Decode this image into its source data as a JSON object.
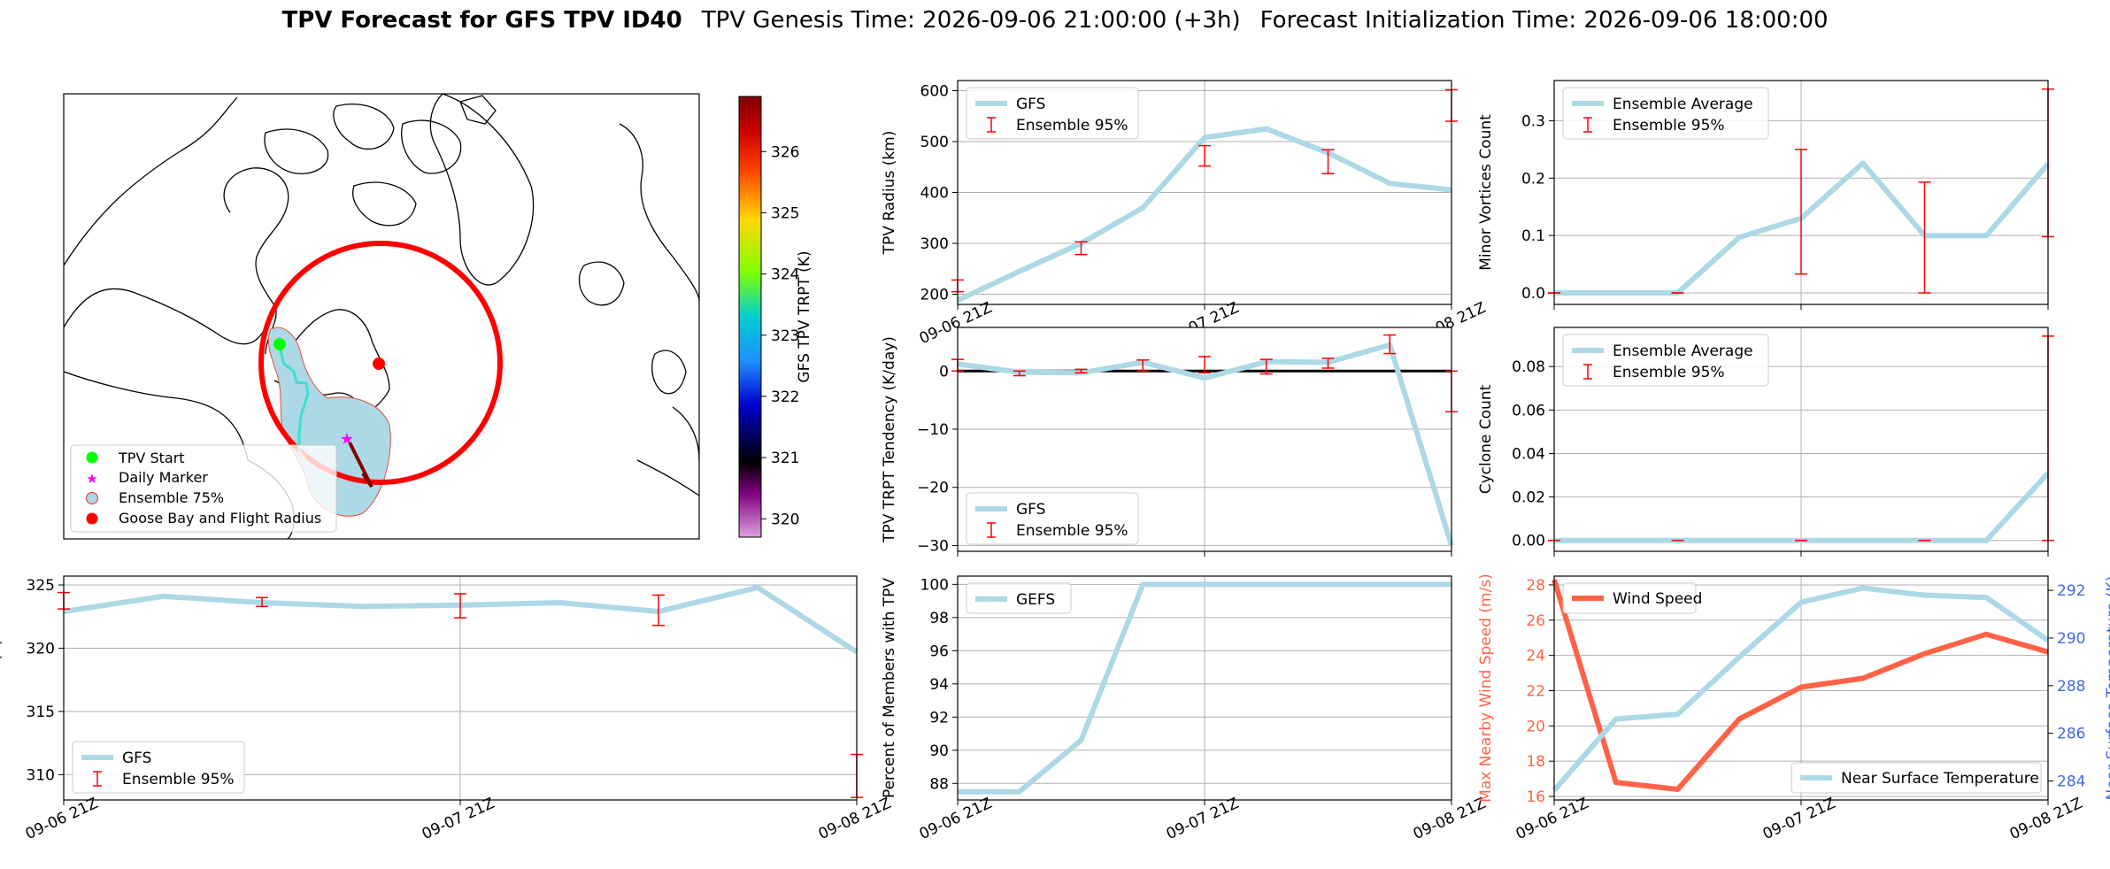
{
  "header": {
    "title_bold": "TPV Forecast for GFS TPV ID40",
    "genesis": "TPV Genesis Time: 2026-09-06 21:00:00 (+3h)",
    "init": "Forecast Initialization Time: 2026-09-06 18:00:00"
  },
  "colors": {
    "gfs_line": "#add8e6",
    "error_bar": "#ff0000",
    "wind_line": "#ff6347",
    "temp_axis": "#4169e1",
    "grid": "#b0b0b0"
  },
  "map": {
    "colorbar": {
      "label": "GFS TPV TRPT (K)",
      "ticks": [
        "320",
        "321",
        "322",
        "323",
        "324",
        "325",
        "326"
      ],
      "range": [
        319.7,
        326.9
      ]
    },
    "legend": [
      "TPV Start",
      "Daily Marker",
      "Ensemble 75%",
      "Goose Bay and Flight Radius"
    ]
  },
  "chart_data": [
    {
      "id": "radius",
      "type": "line",
      "ylabel": "TPV Radius (km)",
      "x": [
        "09-06 21Z",
        "09-07 03Z",
        "09-07 09Z",
        "09-07 15Z",
        "09-07 21Z",
        "09-08 03Z",
        "09-08 09Z",
        "09-08 15Z",
        "09-08 21Z"
      ],
      "xticks": [
        "09-06 21Z",
        "09-07 21Z",
        "09-08 21Z"
      ],
      "ylim": [
        180,
        620
      ],
      "yticks": [
        "200",
        "300",
        "400",
        "500",
        "600"
      ],
      "series": [
        {
          "name": "GFS",
          "values": [
            188,
            245,
            300,
            370,
            508,
            525,
            478,
            418,
            405
          ]
        }
      ],
      "errorbars": {
        "name": "Ensemble 95%",
        "x_index": [
          0,
          2,
          4,
          6,
          8
        ],
        "low": [
          205,
          278,
          452,
          437,
          540
        ],
        "high": [
          228,
          303,
          492,
          484,
          602
        ]
      },
      "legend": [
        "GFS",
        "Ensemble 95%"
      ]
    },
    {
      "id": "minor",
      "type": "line",
      "ylabel": "Minor Vortices Count",
      "x": [
        "09-06 21Z",
        "09-07 03Z",
        "09-07 09Z",
        "09-07 15Z",
        "09-07 21Z",
        "09-08 03Z",
        "09-08 09Z",
        "09-08 15Z",
        "09-08 21Z"
      ],
      "ylim": [
        -0.02,
        0.37
      ],
      "yticks": [
        "0.0",
        "0.1",
        "0.2",
        "0.3"
      ],
      "series": [
        {
          "name": "Ensemble Average",
          "values": [
            0,
            0,
            0,
            0.097,
            0.13,
            0.226,
            0.1,
            0.1,
            0.225
          ]
        }
      ],
      "errorbars": {
        "name": "Ensemble 95%",
        "x_index": [
          0,
          2,
          4,
          6,
          8
        ],
        "low": [
          0,
          0,
          0.033,
          0,
          0.098
        ],
        "high": [
          0,
          0,
          0.25,
          0.193,
          0.355
        ]
      },
      "legend": [
        "Ensemble Average",
        "Ensemble 95%"
      ]
    },
    {
      "id": "tendency",
      "type": "line",
      "ylabel": "TPV TRPT Tendency (K/day)",
      "x": [
        "09-06 21Z",
        "09-07 03Z",
        "09-07 09Z",
        "09-07 15Z",
        "09-07 21Z",
        "09-08 03Z",
        "09-08 09Z",
        "09-08 15Z",
        "09-08 21Z"
      ],
      "ylim": [
        -31,
        7.5
      ],
      "yticks": [
        "−30",
        "−20",
        "−10",
        "0"
      ],
      "series": [
        {
          "name": "GFS",
          "values": [
            1.2,
            -0.2,
            -0.3,
            1.5,
            -1.2,
            1.6,
            1.5,
            4.5,
            -30
          ]
        }
      ],
      "zero_line": true,
      "errorbars": {
        "name": "Ensemble 95%",
        "x_index": [
          0,
          1,
          2,
          3,
          4,
          5,
          6,
          7,
          8
        ],
        "low": [
          0,
          -0.8,
          -0.3,
          0,
          -0.3,
          -0.5,
          0.5,
          3.0,
          -7
        ],
        "high": [
          2,
          0,
          0.3,
          1.9,
          2.5,
          2,
          2.2,
          6.2,
          0
        ]
      },
      "legend": [
        "GFS",
        "Ensemble 95%"
      ]
    },
    {
      "id": "cyclone",
      "type": "line",
      "ylabel": "Cyclone Count",
      "x": [
        "09-06 21Z",
        "09-07 03Z",
        "09-07 09Z",
        "09-07 15Z",
        "09-07 21Z",
        "09-08 03Z",
        "09-08 09Z",
        "09-08 15Z",
        "09-08 21Z"
      ],
      "ylim": [
        -0.005,
        0.098
      ],
      "yticks": [
        "0.00",
        "0.02",
        "0.04",
        "0.06",
        "0.08"
      ],
      "series": [
        {
          "name": "Ensemble Average",
          "values": [
            0,
            0,
            0,
            0,
            0,
            0,
            0,
            0,
            0.031
          ]
        }
      ],
      "errorbars": {
        "name": "Ensemble 95%",
        "x_index": [
          0,
          2,
          4,
          6,
          8
        ],
        "low": [
          0,
          0,
          0,
          0,
          0
        ],
        "high": [
          0,
          0,
          0,
          0,
          0.094
        ]
      },
      "legend": [
        "Ensemble Average",
        "Ensemble 95%"
      ]
    },
    {
      "id": "trpt",
      "type": "line",
      "ylabel": "TPV TRPT (K)",
      "x": [
        "09-06 21Z",
        "09-07 03Z",
        "09-07 09Z",
        "09-07 15Z",
        "09-07 21Z",
        "09-08 03Z",
        "09-08 09Z",
        "09-08 15Z",
        "09-08 21Z"
      ],
      "xticks": [
        "09-06 21Z",
        "09-07 21Z",
        "09-08 21Z"
      ],
      "ylim": [
        308,
        325.7
      ],
      "yticks": [
        "310",
        "315",
        "320",
        "325"
      ],
      "series": [
        {
          "name": "GFS",
          "values": [
            322.9,
            324.1,
            323.6,
            323.3,
            323.4,
            323.6,
            322.9,
            324.8,
            319.7
          ]
        }
      ],
      "errorbars": {
        "name": "Ensemble 95%",
        "x_index": [
          0,
          2,
          4,
          6,
          8
        ],
        "low": [
          323.1,
          323.3,
          322.4,
          321.8,
          308.2
        ],
        "high": [
          324.4,
          324.0,
          324.3,
          324.2,
          311.6
        ]
      },
      "legend": [
        "GFS",
        "Ensemble 95%"
      ]
    },
    {
      "id": "percent",
      "type": "line",
      "ylabel": "Percent of Members with TPV",
      "x": [
        "09-06 21Z",
        "09-07 03Z",
        "09-07 09Z",
        "09-07 15Z",
        "09-07 21Z",
        "09-08 03Z",
        "09-08 09Z",
        "09-08 15Z",
        "09-08 21Z"
      ],
      "xticks": [
        "09-06 21Z",
        "09-07 21Z",
        "09-08 21Z"
      ],
      "ylim": [
        87,
        100.5
      ],
      "yticks": [
        "88",
        "90",
        "92",
        "94",
        "96",
        "98",
        "100"
      ],
      "series": [
        {
          "name": "GEFS",
          "values": [
            87.5,
            87.5,
            90.6,
            100,
            100,
            100,
            100,
            100,
            100
          ]
        }
      ],
      "legend": [
        "GEFS"
      ]
    },
    {
      "id": "wind_temp",
      "type": "line",
      "ylabel": "Max Nearby Wind Speed (m/s)",
      "ylabel_right": "Near Surface Temperature (K)",
      "x": [
        "09-06 21Z",
        "09-07 03Z",
        "09-07 09Z",
        "09-07 15Z",
        "09-07 21Z",
        "09-08 03Z",
        "09-08 09Z",
        "09-08 15Z",
        "09-08 21Z"
      ],
      "xticks": [
        "09-06 21Z",
        "09-07 21Z",
        "09-08 21Z"
      ],
      "ylim": [
        15.8,
        28.5
      ],
      "yticks": [
        "16",
        "18",
        "20",
        "22",
        "24",
        "26",
        "28"
      ],
      "ylim_right": [
        283.2,
        292.6
      ],
      "yticks_right": [
        "284",
        "286",
        "288",
        "290",
        "292"
      ],
      "series": [
        {
          "name": "Wind Speed",
          "axis": "left",
          "values": [
            28.3,
            16.8,
            16.4,
            20.4,
            22.2,
            22.7,
            24.1,
            25.2,
            24.2
          ]
        },
        {
          "name": "Near Surface Temperature",
          "axis": "right",
          "values": [
            283.6,
            286.6,
            286.8,
            289.2,
            291.5,
            292.1,
            291.8,
            291.7,
            289.9
          ]
        }
      ],
      "legend": [
        "Wind Speed",
        "Near Surface Temperature"
      ]
    }
  ]
}
